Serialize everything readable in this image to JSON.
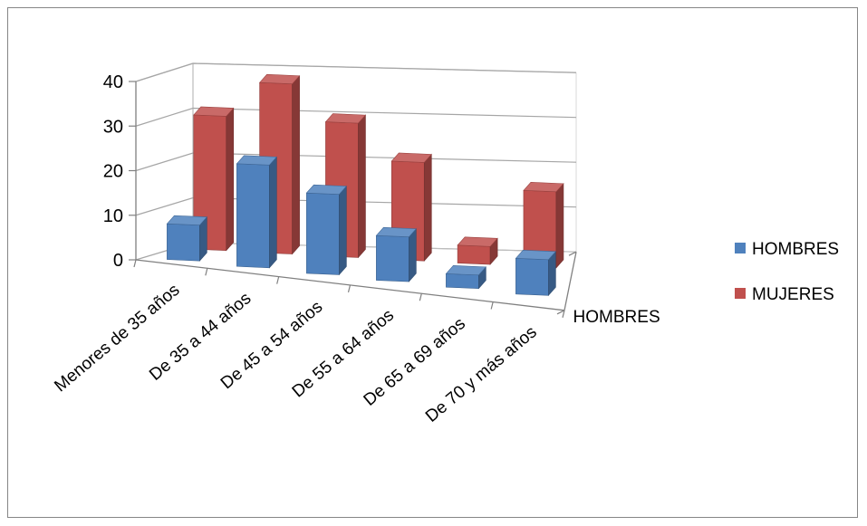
{
  "chart_data": {
    "type": "bar",
    "title": "",
    "xlabel": "",
    "ylabel": "",
    "categories": [
      "Menores de 35 años",
      "De 35 a 44 años",
      "De 45 a 54 años",
      "De 55 a 64 años",
      "De 65 a 69 años",
      "De 70 y más años"
    ],
    "series": [
      {
        "name": "HOMBRES",
        "values": [
          8,
          23,
          18,
          10,
          3,
          8
        ],
        "color": "#4F81BD"
      },
      {
        "name": "MUJERES",
        "values": [
          30,
          38,
          30,
          22,
          4,
          17
        ],
        "color": "#C0504D"
      }
    ],
    "yticks": [
      "0",
      "10",
      "20",
      "30",
      "40"
    ],
    "ylim": [
      0,
      40
    ],
    "depth_axis_label": "HOMBRES",
    "grid": true,
    "legend_position": "right"
  }
}
